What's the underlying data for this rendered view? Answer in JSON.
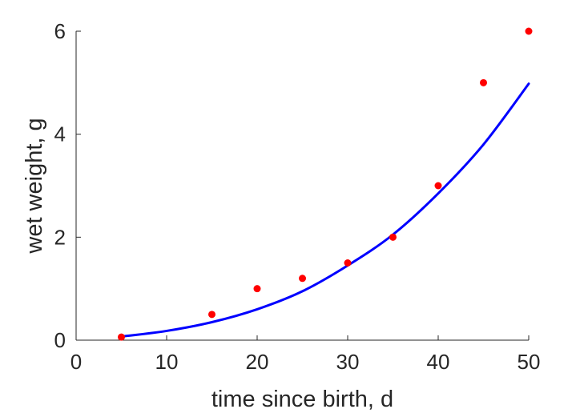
{
  "chart_data": {
    "type": "scatter",
    "title": "",
    "xlabel": "time since birth, d",
    "ylabel": "wet weight, g",
    "xlim": [
      0,
      50
    ],
    "ylim": [
      0,
      6
    ],
    "xticks": [
      0,
      10,
      20,
      30,
      40,
      50
    ],
    "yticks": [
      0,
      2,
      4,
      6
    ],
    "xtick_labels": [
      "0",
      "10",
      "20",
      "30",
      "40",
      "50"
    ],
    "ytick_labels": [
      "0",
      "2",
      "4",
      "6"
    ],
    "grid": false,
    "box": "off",
    "series": [
      {
        "type": "scatter",
        "color": "#ff0000",
        "marker": "dot",
        "x": [
          5,
          15,
          20,
          25,
          30,
          35,
          40,
          45,
          50
        ],
        "y": [
          0.06,
          0.5,
          1.0,
          1.2,
          1.5,
          2.0,
          3.0,
          5.0,
          6.0
        ]
      },
      {
        "type": "line",
        "color": "#0000ff",
        "x": [
          5,
          10,
          15,
          20,
          25,
          30,
          35,
          40,
          45,
          50
        ],
        "y": [
          0.07,
          0.18,
          0.35,
          0.6,
          0.95,
          1.45,
          2.05,
          2.85,
          3.8,
          4.98
        ]
      }
    ]
  }
}
